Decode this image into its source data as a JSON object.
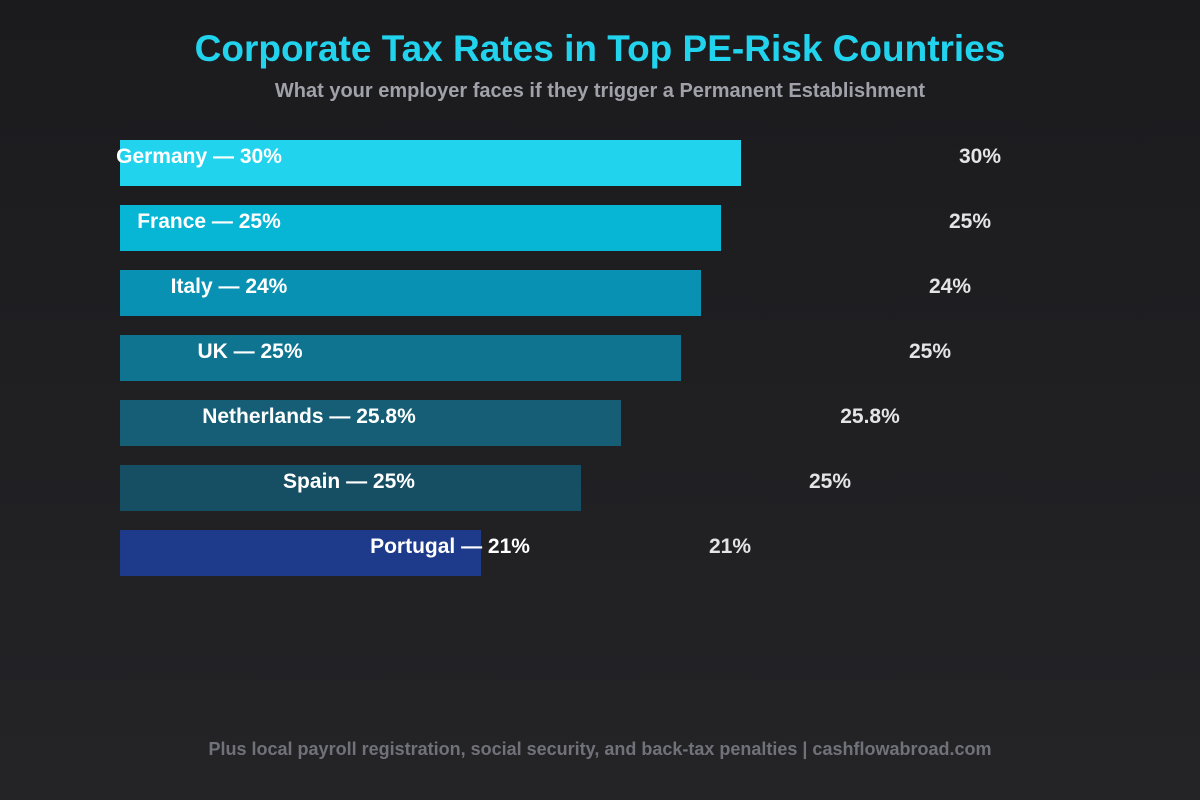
{
  "chart_data": {
    "type": "bar",
    "orientation": "horizontal",
    "title": "Corporate Tax Rates in Top PE-Risk Countries",
    "subtitle": "What your employer faces if they trigger a Permanent Establishment",
    "footer": "Plus local payroll registration, social security, and back-tax penalties | cashflowabroad.com",
    "categories": [
      "Germany",
      "France",
      "Italy",
      "UK",
      "Netherlands",
      "Spain",
      "Portugal"
    ],
    "bar_labels": [
      "Germany — 30%",
      "France — 25%",
      "Italy — 24%",
      "UK — 25%",
      "Netherlands — 25.8%",
      "Spain — 25%",
      "Portugal — 21%"
    ],
    "value_labels": [
      "30%",
      "25%",
      "24%",
      "25%",
      "25.8%",
      "25%",
      "21%"
    ],
    "values": [
      30,
      25,
      24,
      25,
      25.8,
      25,
      21
    ],
    "colors": [
      "#22d3ee",
      "#06b6d4",
      "#0891b2",
      "#0e7490",
      "#155e75",
      "#164e63",
      "#1e3a8a"
    ],
    "grid": false,
    "legend": "none"
  }
}
